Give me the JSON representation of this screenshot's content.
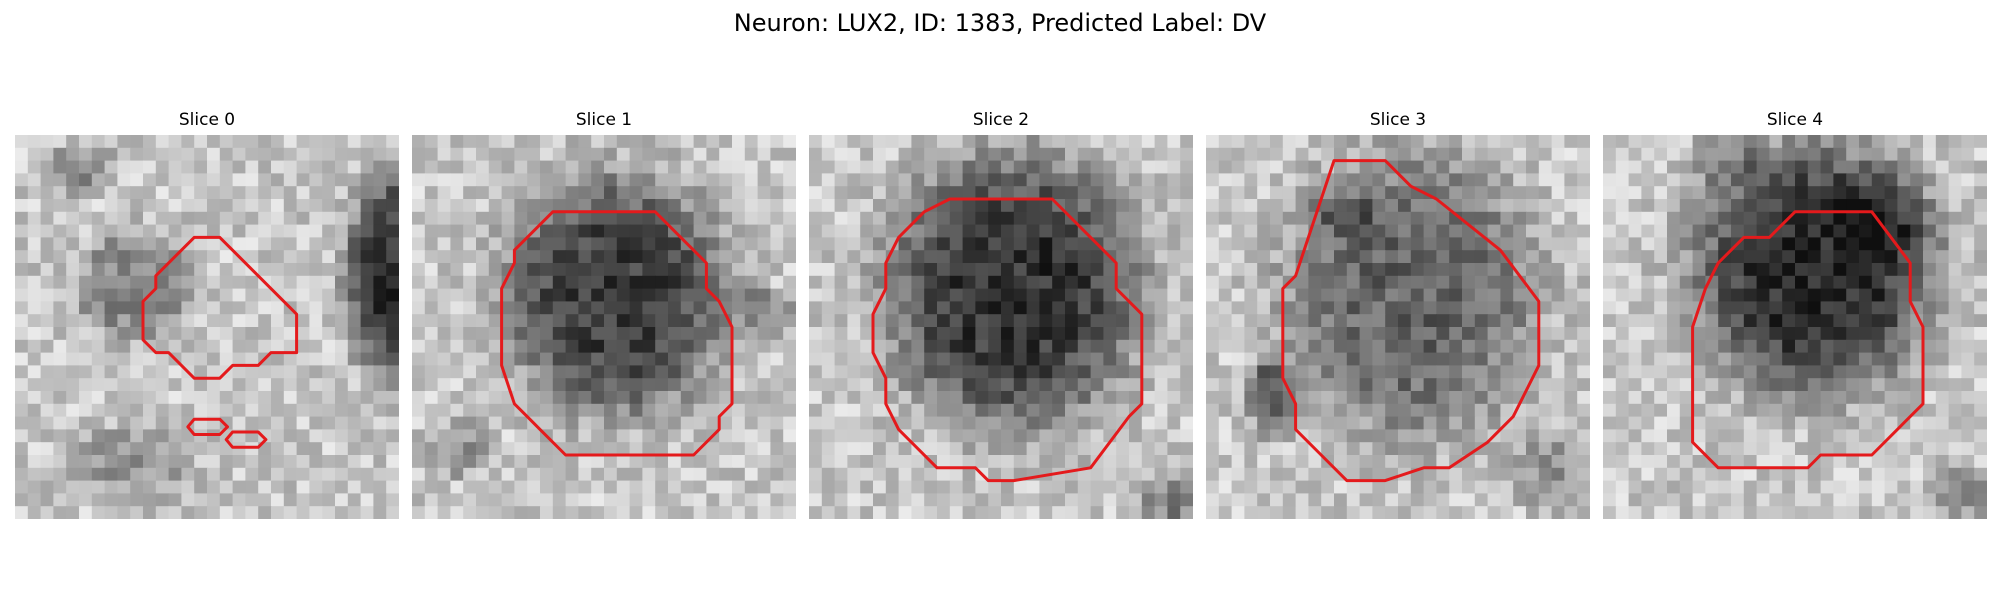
{
  "figure": {
    "title": "Neuron: LUX2, ID: 1383, Predicted Label: DV"
  },
  "panels": [
    {
      "title": "Slice 0"
    },
    {
      "title": "Slice 1"
    },
    {
      "title": "Slice 2"
    },
    {
      "title": "Slice 3"
    },
    {
      "title": "Slice 4"
    }
  ],
  "colors": {
    "contour": "#e41a1c",
    "background": "#ffffff"
  }
}
